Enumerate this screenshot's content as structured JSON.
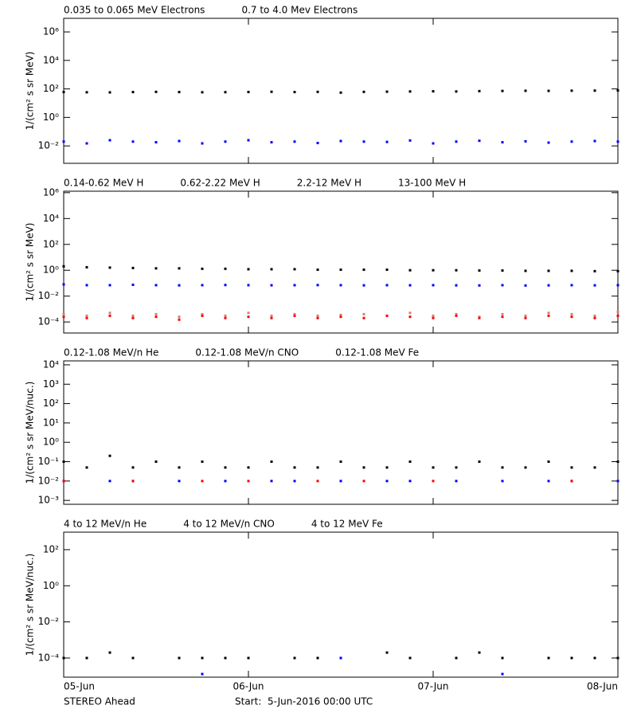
{
  "chart_data": [
    {
      "type": "scatter",
      "y_label": "1/(cm² s sr MeV)",
      "ylog": true,
      "ylim": [
        0.0006,
        9000000
      ],
      "yticks": [
        {
          "value": 0.01,
          "label": "10⁻²"
        },
        {
          "value": 1,
          "label": "10⁰"
        },
        {
          "value": 100,
          "label": "10²"
        },
        {
          "value": 10000,
          "label": "10⁴"
        },
        {
          "value": 1000000,
          "label": "10⁶"
        }
      ],
      "x": [
        0,
        3,
        6,
        9,
        12,
        15,
        18,
        21,
        24,
        27,
        30,
        33,
        36,
        39,
        42,
        45,
        48,
        51,
        54,
        57,
        60,
        63,
        66,
        69,
        72
      ],
      "series": [
        {
          "name": "0.035 to 0.065 MeV Electrons",
          "color": "#000000",
          "values": [
            60,
            58,
            57,
            60,
            62,
            60,
            58,
            59,
            61,
            63,
            60,
            62,
            55,
            62,
            64,
            66,
            68,
            66,
            70,
            72,
            74,
            73,
            75,
            76,
            78
          ]
        },
        {
          "name": "0.7 to 4.0 Mev Electrons",
          "color": "#0000ff",
          "values": [
            0.02,
            0.015,
            0.025,
            0.02,
            0.018,
            0.022,
            0.015,
            0.02,
            0.025,
            0.018,
            0.02,
            0.016,
            0.022,
            0.02,
            0.019,
            0.024,
            0.015,
            0.02,
            0.023,
            0.018,
            0.021,
            0.017,
            0.02,
            0.022,
            0.02
          ]
        }
      ]
    },
    {
      "type": "scatter",
      "y_label": "1/(cm² s sr MeV)",
      "ylog": true,
      "ylim": [
        1.4e-05,
        1300000
      ],
      "yticks": [
        {
          "value": 0.0001,
          "label": "10⁻⁴"
        },
        {
          "value": 0.01,
          "label": "10⁻²"
        },
        {
          "value": 1,
          "label": "10⁰"
        },
        {
          "value": 100,
          "label": "10²"
        },
        {
          "value": 10000,
          "label": "10⁴"
        },
        {
          "value": 1000000,
          "label": "10⁶"
        }
      ],
      "x": [
        0,
        3,
        6,
        9,
        12,
        15,
        18,
        21,
        24,
        27,
        30,
        33,
        36,
        39,
        42,
        45,
        48,
        51,
        54,
        57,
        60,
        63,
        66,
        69,
        72
      ],
      "series": [
        {
          "name": "0.14-0.62 MeV H",
          "color": "#000000",
          "values": [
            2,
            1.7,
            1.6,
            1.5,
            1.4,
            1.4,
            1.3,
            1.3,
            1.2,
            1.2,
            1.2,
            1.1,
            1.1,
            1.1,
            1.1,
            1.0,
            1.0,
            1.0,
            0.95,
            0.95,
            0.9,
            0.9,
            0.9,
            0.85,
            0.85
          ]
        },
        {
          "name": "0.62-2.22 MeV H",
          "color": "#0000ff",
          "values": [
            0.08,
            0.07,
            0.07,
            0.075,
            0.07,
            0.068,
            0.07,
            0.072,
            0.07,
            0.069,
            0.07,
            0.071,
            0.07,
            0.068,
            0.07,
            0.069,
            0.07,
            0.068,
            0.067,
            0.07,
            0.066,
            0.068,
            0.07,
            0.068,
            0.07
          ]
        },
        {
          "name": "2.2-12 MeV H",
          "color": "#d2826e",
          "values": [
            0.0004,
            0.0003,
            0.0005,
            0.0003,
            0.0004,
            0.00025,
            0.0004,
            0.0003,
            0.0005,
            0.0003,
            0.0004,
            0.0003,
            0.00035,
            0.0004,
            0.0003,
            0.0005,
            0.0003,
            0.0004,
            0.00025,
            0.0004,
            0.0003,
            0.0005,
            0.0004,
            0.0003,
            0.0006
          ]
        },
        {
          "name": "13-100 MeV H",
          "color": "#ff0000",
          "values": [
            0.00025,
            0.0002,
            0.0003,
            0.0002,
            0.00025,
            0.00015,
            0.0003,
            0.0002,
            0.00025,
            0.0002,
            0.0003,
            0.0002,
            0.00025,
            0.0002,
            0.0003,
            0.00025,
            0.0002,
            0.0003,
            0.0002,
            0.00025,
            0.0002,
            0.0003,
            0.00025,
            0.0002,
            0.0003
          ]
        }
      ]
    },
    {
      "type": "scatter",
      "y_label": "1/(cm² s sr MeV/nuc.)",
      "ylog": true,
      "ylim": [
        0.00063,
        16000
      ],
      "yticks": [
        {
          "value": 0.001,
          "label": "10⁻³"
        },
        {
          "value": 0.01,
          "label": "10⁻²"
        },
        {
          "value": 0.1,
          "label": "10⁻¹"
        },
        {
          "value": 1,
          "label": "10⁰"
        },
        {
          "value": 10,
          "label": "10¹"
        },
        {
          "value": 100,
          "label": "10²"
        },
        {
          "value": 1000,
          "label": "10³"
        },
        {
          "value": 10000,
          "label": "10⁴"
        }
      ],
      "x": [
        0,
        3,
        6,
        9,
        12,
        15,
        18,
        21,
        24,
        27,
        30,
        33,
        36,
        39,
        42,
        45,
        48,
        51,
        54,
        57,
        60,
        63,
        66,
        69,
        72
      ],
      "series": [
        {
          "name": "0.12-1.08 MeV/n He",
          "color": "#000000",
          "values": [
            0.1,
            0.05,
            0.2,
            0.05,
            0.1,
            0.05,
            0.1,
            0.05,
            0.05,
            0.1,
            0.05,
            0.05,
            0.1,
            0.05,
            0.05,
            0.1,
            0.05,
            0.05,
            0.1,
            0.05,
            0.05,
            0.1,
            0.05,
            0.05,
            0.1
          ]
        },
        {
          "name": "0.12-1.08 MeV/n CNO",
          "color": "#0000ff",
          "values": [
            0.01,
            null,
            0.01,
            0.01,
            null,
            0.01,
            null,
            0.01,
            null,
            0.01,
            0.01,
            null,
            0.01,
            null,
            0.01,
            0.01,
            null,
            0.01,
            null,
            0.01,
            null,
            0.01,
            0.01,
            null,
            0.01
          ]
        },
        {
          "name": "0.12-1.08 MeV Fe",
          "color": "#ff0000",
          "values": [
            0.01,
            null,
            null,
            0.01,
            null,
            null,
            0.01,
            null,
            0.01,
            null,
            null,
            0.01,
            null,
            0.01,
            null,
            null,
            0.01,
            null,
            null,
            null,
            null,
            null,
            0.01,
            null,
            null
          ]
        }
      ]
    },
    {
      "type": "scatter",
      "y_label": "1/(cm² s sr MeV/nuc.)",
      "ylog": true,
      "ylim": [
        8.7e-06,
        930
      ],
      "yticks": [
        {
          "value": 0.0001,
          "label": "10⁻⁴"
        },
        {
          "value": 0.01,
          "label": "10⁻²"
        },
        {
          "value": 1,
          "label": "10⁰"
        },
        {
          "value": 100,
          "label": "10²"
        }
      ],
      "xlim": [
        0,
        72
      ],
      "xticks": [
        {
          "value": 0,
          "label": "05-Jun"
        },
        {
          "value": 24,
          "label": "06-Jun"
        },
        {
          "value": 48,
          "label": "07-Jun"
        },
        {
          "value": 72,
          "label": "08-Jun"
        }
      ],
      "x": [
        0,
        3,
        6,
        9,
        12,
        15,
        18,
        21,
        24,
        27,
        30,
        33,
        36,
        39,
        42,
        45,
        48,
        51,
        54,
        57,
        60,
        63,
        66,
        69,
        72
      ],
      "series": [
        {
          "name": "4 to 12 MeV/n He",
          "color": "#000000",
          "values": [
            0.0001,
            0.0001,
            0.0002,
            0.0001,
            null,
            0.0001,
            0.0001,
            0.0001,
            0.0001,
            null,
            0.0001,
            0.0001,
            0.0001,
            null,
            0.0002,
            0.0001,
            null,
            0.0001,
            0.0002,
            0.0001,
            null,
            0.0001,
            0.0001,
            0.0001,
            0.0001
          ]
        },
        {
          "name": "4 to 12 MeV/n CNO",
          "color": "#0000ff",
          "values": [
            null,
            null,
            null,
            null,
            null,
            null,
            1.3e-05,
            null,
            null,
            null,
            null,
            null,
            0.0001,
            null,
            null,
            null,
            null,
            null,
            null,
            1.3e-05,
            null,
            null,
            null,
            null,
            null
          ]
        },
        {
          "name": "4 to 12 MeV Fe",
          "color": "#ff0000",
          "values": [
            null,
            null,
            null,
            null,
            null,
            null,
            null,
            null,
            null,
            null,
            null,
            null,
            null,
            null,
            null,
            null,
            null,
            null,
            null,
            null,
            null,
            null,
            null,
            null,
            null
          ]
        }
      ]
    }
  ],
  "footer": {
    "spacecraft": "STEREO Ahead",
    "start": "Start:  5-Jun-2016 00:00 UTC"
  }
}
